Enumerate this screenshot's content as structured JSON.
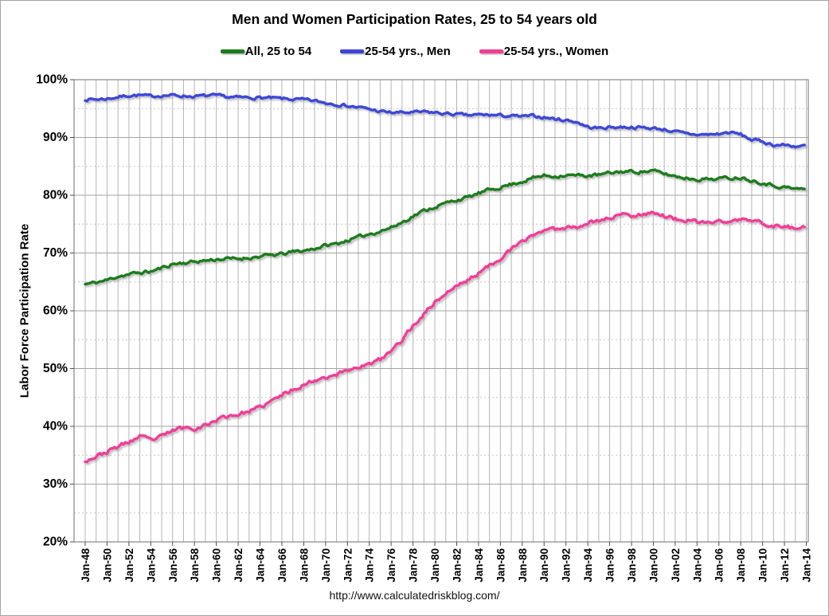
{
  "title": "Men and Women Participation Rates, 25 to 54 years old",
  "footer": "http://www.calculatedriskblog.com/",
  "chart_data": {
    "type": "line",
    "title": "Men and Women Participation Rates, 25 to 54 years old",
    "xlabel": "",
    "ylabel": "Labor Force Participation Rate",
    "ylim": [
      20,
      100
    ],
    "y_major_step": 10,
    "y_minor_step": 5,
    "grid": "major-solid, minor-dashed, yearly-vertical",
    "legend_position": "top",
    "x_start_year": 1948,
    "x_end_year": 2014,
    "x_tick_step_years": 2,
    "x_tick_labels": [
      "Jan-48",
      "Jan-50",
      "Jan-52",
      "Jan-54",
      "Jan-56",
      "Jan-58",
      "Jan-60",
      "Jan-62",
      "Jan-64",
      "Jan-66",
      "Jan-68",
      "Jan-70",
      "Jan-72",
      "Jan-74",
      "Jan-76",
      "Jan-78",
      "Jan-80",
      "Jan-82",
      "Jan-84",
      "Jan-86",
      "Jan-88",
      "Jan-90",
      "Jan-92",
      "Jan-94",
      "Jan-96",
      "Jan-98",
      "Jan-00",
      "Jan-02",
      "Jan-04",
      "Jan-06",
      "Jan-08",
      "Jan-10",
      "Jan-12",
      "Jan-14"
    ],
    "y_tick_labels": [
      "100%",
      "90%",
      "80%",
      "70%",
      "60%",
      "50%",
      "40%",
      "30%",
      "20%"
    ],
    "years": [
      1948,
      1949,
      1950,
      1951,
      1952,
      1953,
      1954,
      1955,
      1956,
      1957,
      1958,
      1959,
      1960,
      1961,
      1962,
      1963,
      1964,
      1965,
      1966,
      1967,
      1968,
      1969,
      1970,
      1971,
      1972,
      1973,
      1974,
      1975,
      1976,
      1977,
      1978,
      1979,
      1980,
      1981,
      1982,
      1983,
      1984,
      1985,
      1986,
      1987,
      1988,
      1989,
      1990,
      1991,
      1992,
      1993,
      1994,
      1995,
      1996,
      1997,
      1998,
      1999,
      2000,
      2001,
      2002,
      2003,
      2004,
      2005,
      2006,
      2007,
      2008,
      2009,
      2010,
      2011,
      2012,
      2013
    ],
    "series": [
      {
        "name": "All, 25 to 54",
        "color": "#1b7c1b",
        "noise_amplitude": 0.5,
        "values": [
          64.6,
          64.9,
          65.3,
          66.0,
          66.3,
          66.6,
          66.8,
          67.4,
          68.1,
          68.3,
          68.5,
          68.7,
          68.9,
          69.0,
          69.0,
          69.2,
          69.4,
          69.6,
          69.8,
          70.2,
          70.4,
          70.8,
          71.3,
          71.6,
          72.2,
          72.7,
          73.3,
          73.8,
          74.4,
          75.3,
          76.4,
          77.3,
          78.0,
          78.6,
          79.2,
          79.6,
          80.3,
          80.9,
          81.4,
          81.9,
          82.4,
          83.0,
          83.4,
          83.3,
          83.5,
          83.4,
          83.4,
          83.5,
          83.8,
          84.1,
          84.1,
          84.1,
          84.2,
          83.7,
          83.3,
          83.0,
          82.8,
          82.8,
          82.9,
          83.0,
          83.1,
          82.6,
          82.2,
          81.7,
          81.4,
          81.1
        ]
      },
      {
        "name": "25-54 yrs., Men",
        "color": "#3c46d8",
        "noise_amplitude": 0.45,
        "values": [
          96.6,
          96.6,
          96.7,
          97.0,
          97.3,
          97.3,
          97.1,
          97.3,
          97.3,
          97.2,
          97.1,
          97.2,
          97.2,
          97.0,
          96.9,
          96.9,
          96.9,
          96.8,
          96.7,
          96.6,
          96.5,
          96.3,
          96.0,
          95.8,
          95.5,
          95.2,
          94.9,
          94.5,
          94.3,
          94.3,
          94.3,
          94.4,
          94.3,
          94.1,
          94.0,
          93.8,
          93.9,
          93.9,
          93.8,
          93.7,
          93.6,
          93.7,
          93.5,
          93.2,
          93.0,
          92.7,
          91.8,
          91.6,
          91.8,
          91.8,
          91.8,
          91.7,
          91.6,
          91.4,
          91.0,
          90.6,
          90.5,
          90.5,
          90.6,
          90.9,
          90.5,
          89.6,
          89.3,
          88.7,
          88.7,
          88.5
        ]
      },
      {
        "name": "25-54 yrs., Women",
        "color": "#f23e97",
        "noise_amplitude": 0.6,
        "values": [
          34.1,
          34.8,
          35.6,
          36.5,
          37.3,
          38.2,
          37.6,
          38.2,
          39.3,
          39.8,
          39.7,
          40.2,
          41.1,
          41.8,
          42.1,
          42.6,
          43.2,
          44.3,
          45.4,
          46.4,
          47.2,
          48.0,
          48.6,
          49.0,
          49.7,
          50.4,
          50.7,
          51.5,
          53.0,
          55.0,
          57.4,
          59.5,
          61.5,
          63.0,
          64.3,
          65.3,
          66.5,
          67.8,
          69.2,
          70.6,
          71.9,
          73.2,
          74.0,
          74.1,
          74.5,
          74.6,
          75.3,
          75.6,
          76.1,
          76.7,
          76.5,
          76.8,
          77.1,
          76.4,
          75.9,
          75.6,
          75.3,
          75.3,
          75.5,
          75.4,
          75.8,
          75.6,
          75.2,
          74.7,
          74.5,
          74.4
        ]
      }
    ]
  }
}
